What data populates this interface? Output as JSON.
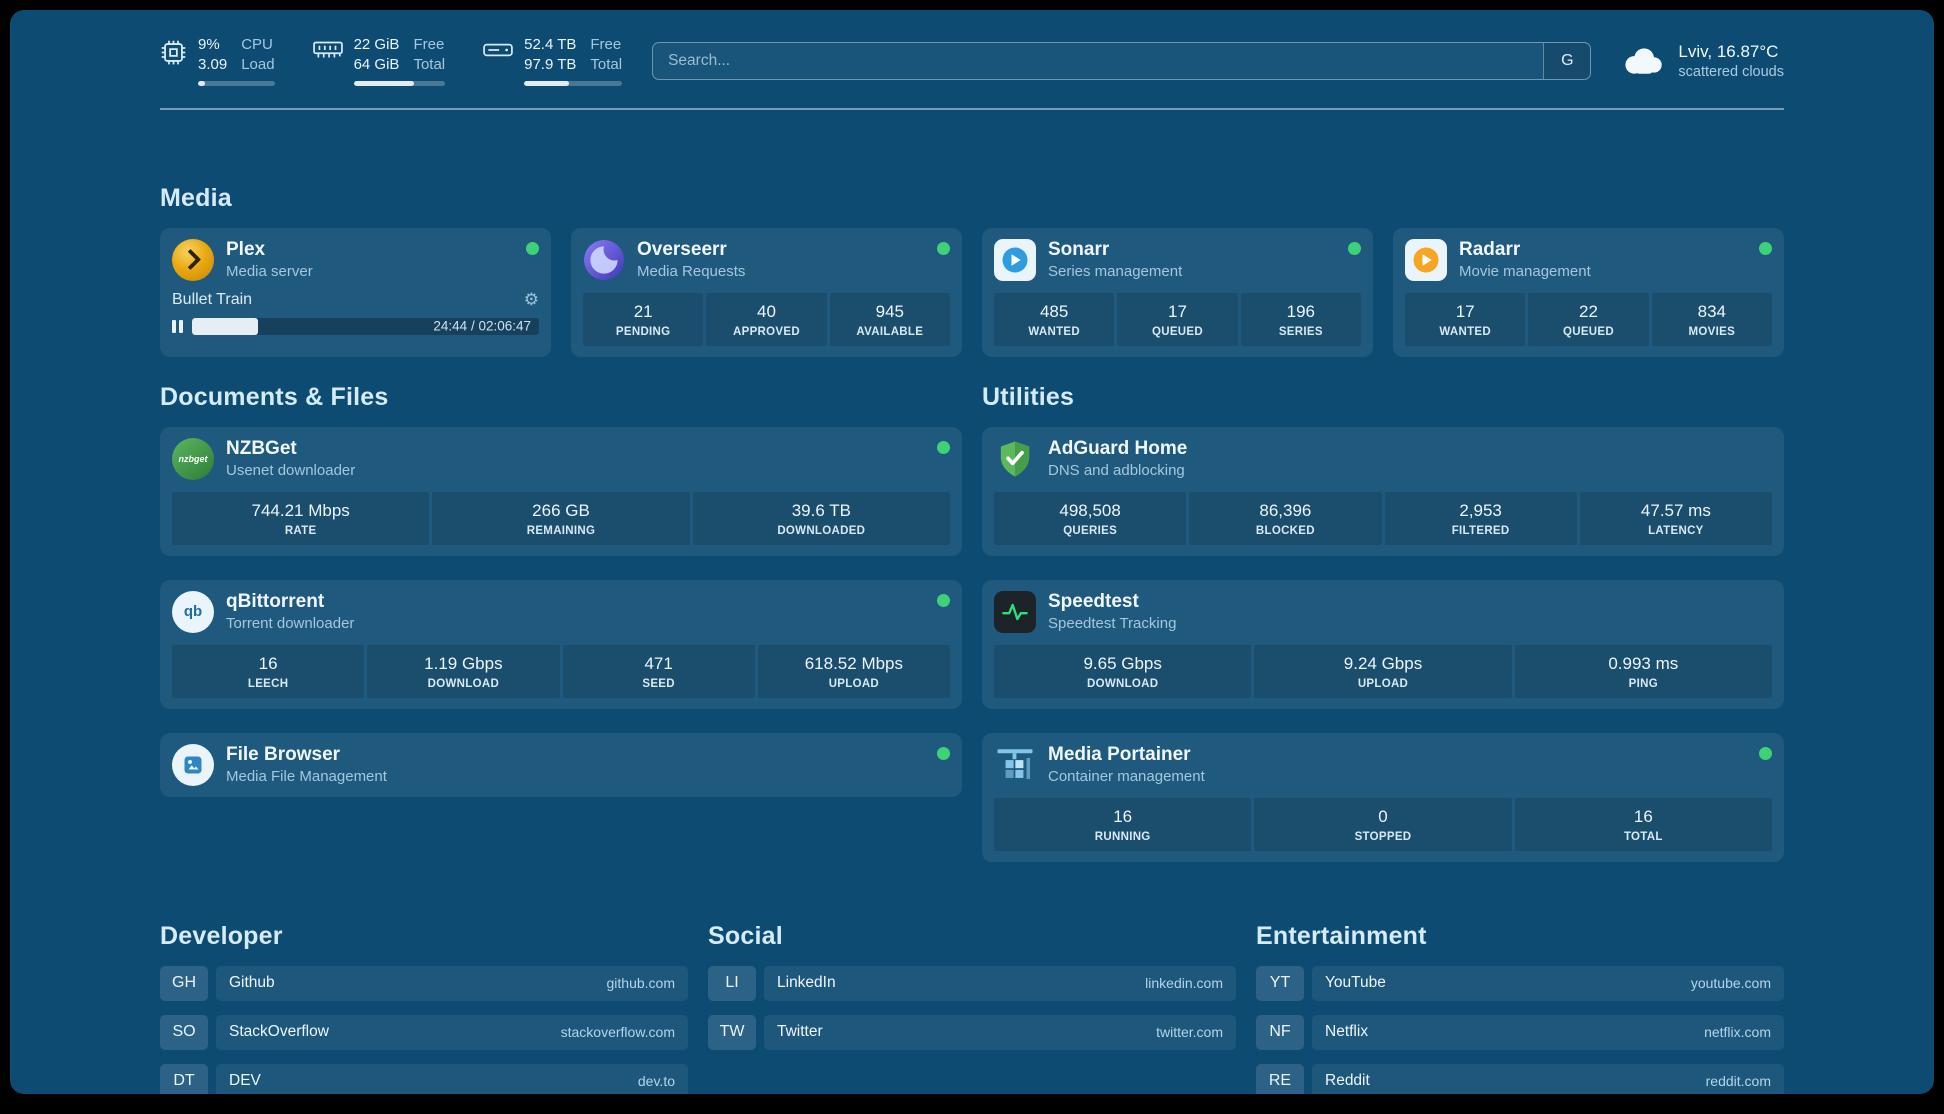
{
  "colors": {
    "page_bg": "#0d4b73",
    "status_online": "#3ed178"
  },
  "topbar": {
    "cpu": {
      "icon": "cpu-icon",
      "values": [
        "9%",
        "3.09"
      ],
      "labels": [
        "CPU",
        "Load"
      ],
      "bar_percent": 9
    },
    "memory": {
      "icon": "memory-icon",
      "values": [
        "22 GiB",
        "64 GiB"
      ],
      "labels": [
        "Free",
        "Total"
      ],
      "bar_percent": 66
    },
    "disk": {
      "icon": "disk-icon",
      "values": [
        "52.4 TB",
        "97.9 TB"
      ],
      "labels": [
        "Free",
        "Total"
      ],
      "bar_percent": 46
    },
    "search": {
      "placeholder": "Search...",
      "provider_label": "G"
    },
    "weather": {
      "icon": "cloud-icon",
      "location": "Lviv, 16.87°C",
      "condition": "scattered clouds"
    }
  },
  "media": {
    "title": "Media",
    "plex": {
      "name": "Plex",
      "subtitle": "Media server",
      "status": "online",
      "now_playing": "Bullet Train",
      "time": "24:44 / 02:06:47",
      "progress_percent": 19
    },
    "overseerr": {
      "name": "Overseerr",
      "subtitle": "Media Requests",
      "status": "online",
      "stats": [
        {
          "value": "21",
          "label": "PENDING"
        },
        {
          "value": "40",
          "label": "APPROVED"
        },
        {
          "value": "945",
          "label": "AVAILABLE"
        }
      ]
    },
    "sonarr": {
      "name": "Sonarr",
      "subtitle": "Series management",
      "status": "online",
      "stats": [
        {
          "value": "485",
          "label": "WANTED"
        },
        {
          "value": "17",
          "label": "QUEUED"
        },
        {
          "value": "196",
          "label": "SERIES"
        }
      ]
    },
    "radarr": {
      "name": "Radarr",
      "subtitle": "Movie management",
      "status": "online",
      "stats": [
        {
          "value": "17",
          "label": "WANTED"
        },
        {
          "value": "22",
          "label": "QUEUED"
        },
        {
          "value": "834",
          "label": "MOVIES"
        }
      ]
    }
  },
  "documents": {
    "title": "Documents & Files",
    "nzbget": {
      "name": "NZBGet",
      "subtitle": "Usenet downloader",
      "status": "online",
      "icon_label": "nzbget",
      "stats": [
        {
          "value": "744.21 Mbps",
          "label": "RATE"
        },
        {
          "value": "266 GB",
          "label": "REMAINING"
        },
        {
          "value": "39.6 TB",
          "label": "DOWNLOADED"
        }
      ]
    },
    "qbittorrent": {
      "name": "qBittorrent",
      "subtitle": "Torrent downloader",
      "status": "online",
      "icon_label": "qb",
      "stats": [
        {
          "value": "16",
          "label": "LEECH"
        },
        {
          "value": "1.19 Gbps",
          "label": "DOWNLOAD"
        },
        {
          "value": "471",
          "label": "SEED"
        },
        {
          "value": "618.52 Mbps",
          "label": "UPLOAD"
        }
      ]
    },
    "filebrowser": {
      "name": "File Browser",
      "subtitle": "Media File Management",
      "status": "online"
    }
  },
  "utilities": {
    "title": "Utilities",
    "adguard": {
      "name": "AdGuard Home",
      "subtitle": "DNS and adblocking",
      "stats": [
        {
          "value": "498,508",
          "label": "QUERIES"
        },
        {
          "value": "86,396",
          "label": "BLOCKED"
        },
        {
          "value": "2,953",
          "label": "FILTERED"
        },
        {
          "value": "47.57 ms",
          "label": "LATENCY"
        }
      ]
    },
    "speedtest": {
      "name": "Speedtest",
      "subtitle": "Speedtest Tracking",
      "stats": [
        {
          "value": "9.65 Gbps",
          "label": "DOWNLOAD"
        },
        {
          "value": "9.24 Gbps",
          "label": "UPLOAD"
        },
        {
          "value": "0.993 ms",
          "label": "PING"
        }
      ]
    },
    "portainer": {
      "name": "Media Portainer",
      "subtitle": "Container management",
      "status": "online",
      "stats": [
        {
          "value": "16",
          "label": "RUNNING"
        },
        {
          "value": "0",
          "label": "STOPPED"
        },
        {
          "value": "16",
          "label": "TOTAL"
        }
      ]
    }
  },
  "bookmarks": [
    {
      "title": "Developer",
      "items": [
        {
          "abbr": "GH",
          "name": "Github",
          "url": "github.com"
        },
        {
          "abbr": "SO",
          "name": "StackOverflow",
          "url": "stackoverflow.com"
        },
        {
          "abbr": "DT",
          "name": "DEV",
          "url": "dev.to"
        }
      ]
    },
    {
      "title": "Social",
      "items": [
        {
          "abbr": "LI",
          "name": "LinkedIn",
          "url": "linkedin.com"
        },
        {
          "abbr": "TW",
          "name": "Twitter",
          "url": "twitter.com"
        }
      ]
    },
    {
      "title": "Entertainment",
      "items": [
        {
          "abbr": "YT",
          "name": "YouTube",
          "url": "youtube.com"
        },
        {
          "abbr": "NF",
          "name": "Netflix",
          "url": "netflix.com"
        },
        {
          "abbr": "RE",
          "name": "Reddit",
          "url": "reddit.com"
        }
      ]
    }
  ]
}
